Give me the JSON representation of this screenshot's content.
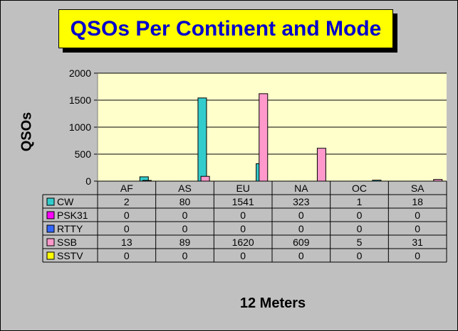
{
  "chart_data": {
    "type": "bar",
    "title": "QSOs Per Continent and Mode",
    "ylabel": "QSOs",
    "xlabel": "12 Meters",
    "ylim": [
      0,
      2000
    ],
    "yticks": [
      0,
      500,
      1000,
      1500,
      2000
    ],
    "grid": true,
    "plot_background": "#ffffcc",
    "categories": [
      "AF",
      "AS",
      "EU",
      "NA",
      "OC",
      "SA"
    ],
    "series": [
      {
        "name": "CW",
        "color": "#33cccc",
        "values": [
          2,
          80,
          1541,
          323,
          1,
          18
        ]
      },
      {
        "name": "PSK31",
        "color": "#ff00ff",
        "values": [
          0,
          0,
          0,
          0,
          0,
          0
        ]
      },
      {
        "name": "RTTY",
        "color": "#3366ff",
        "values": [
          0,
          0,
          0,
          0,
          0,
          0
        ]
      },
      {
        "name": "SSB",
        "color": "#ff99cc",
        "values": [
          13,
          89,
          1620,
          609,
          5,
          31
        ]
      },
      {
        "name": "SSTV",
        "color": "#ffff00",
        "values": [
          0,
          0,
          0,
          0,
          0,
          0
        ]
      }
    ],
    "table": true
  }
}
